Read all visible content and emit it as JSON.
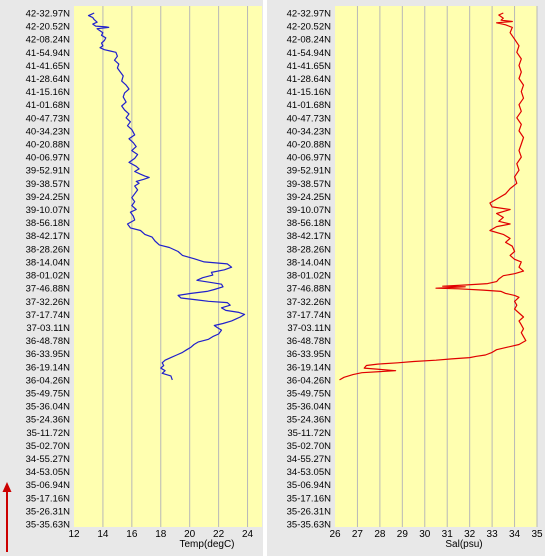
{
  "chart_data": [
    {
      "type": "line",
      "xlabel": "Temp(degC)",
      "ylabel": "",
      "xlim": [
        12,
        25
      ],
      "xticks": [
        12,
        14,
        16,
        18,
        20,
        22,
        24
      ],
      "grid": true,
      "colors": {
        "series": "#2020cc",
        "background": "#ffffb0",
        "grid": "#b8b8b8"
      },
      "series": [
        {
          "points": [
            [
              13.4,
              0
            ],
            [
              13.2,
              0.1
            ],
            [
              13.0,
              0.2
            ],
            [
              13.3,
              0.35
            ],
            [
              13.4,
              0.5
            ],
            [
              13.6,
              0.7
            ],
            [
              13.3,
              0.85
            ],
            [
              13.5,
              1.0
            ],
            [
              14.2,
              1.05
            ],
            [
              14.4,
              1.1
            ],
            [
              13.6,
              1.2
            ],
            [
              13.8,
              1.35
            ],
            [
              14.0,
              1.5
            ],
            [
              13.9,
              1.7
            ],
            [
              14.2,
              1.9
            ],
            [
              14.1,
              2.1
            ],
            [
              13.9,
              2.3
            ],
            [
              14.0,
              2.5
            ],
            [
              13.8,
              2.65
            ],
            [
              14.1,
              2.8
            ],
            [
              14.5,
              2.9
            ],
            [
              14.9,
              3.0
            ],
            [
              15.0,
              3.3
            ],
            [
              14.8,
              3.6
            ],
            [
              15.1,
              3.9
            ],
            [
              15.0,
              4.2
            ],
            [
              15.2,
              4.5
            ],
            [
              15.4,
              4.8
            ],
            [
              15.3,
              5.2
            ],
            [
              15.6,
              5.5
            ],
            [
              15.8,
              5.8
            ],
            [
              15.5,
              6.1
            ],
            [
              15.4,
              6.4
            ],
            [
              15.6,
              6.8
            ],
            [
              15.3,
              7.1
            ],
            [
              15.5,
              7.4
            ],
            [
              15.8,
              7.7
            ],
            [
              15.6,
              8.0
            ],
            [
              15.9,
              8.3
            ],
            [
              15.7,
              8.6
            ],
            [
              16.0,
              8.9
            ],
            [
              16.2,
              9.3
            ],
            [
              15.8,
              9.6
            ],
            [
              16.1,
              9.9
            ],
            [
              16.3,
              10.2
            ],
            [
              16.0,
              10.5
            ],
            [
              16.4,
              10.8
            ],
            [
              16.2,
              11.1
            ],
            [
              15.8,
              11.4
            ],
            [
              16.3,
              11.7
            ],
            [
              16.5,
              11.9
            ],
            [
              16.2,
              12.1
            ],
            [
              16.6,
              12.3
            ],
            [
              16.9,
              12.45
            ],
            [
              17.2,
              12.55
            ],
            [
              16.8,
              12.7
            ],
            [
              16.3,
              12.85
            ],
            [
              16.5,
              13.0
            ],
            [
              16.2,
              13.2
            ],
            [
              16.4,
              13.5
            ],
            [
              16.2,
              13.8
            ],
            [
              16.0,
              14.1
            ],
            [
              16.2,
              14.4
            ],
            [
              16.0,
              14.7
            ],
            [
              16.3,
              15.0
            ],
            [
              15.9,
              15.2
            ],
            [
              16.1,
              15.5
            ],
            [
              16.2,
              15.8
            ],
            [
              15.7,
              16.1
            ],
            [
              15.9,
              16.4
            ],
            [
              16.6,
              16.6
            ],
            [
              16.9,
              16.9
            ],
            [
              17.4,
              17.1
            ],
            [
              17.6,
              17.4
            ],
            [
              17.9,
              17.7
            ],
            [
              18.6,
              17.9
            ],
            [
              19.2,
              18.2
            ],
            [
              19.5,
              18.5
            ],
            [
              20.3,
              18.75
            ],
            [
              21.0,
              19.0
            ],
            [
              22.6,
              19.15
            ],
            [
              22.9,
              19.4
            ],
            [
              22.4,
              19.6
            ],
            [
              21.5,
              19.8
            ],
            [
              21.6,
              20.0
            ],
            [
              20.9,
              20.2
            ],
            [
              20.5,
              20.4
            ],
            [
              21.4,
              20.55
            ],
            [
              22.2,
              20.7
            ],
            [
              22.3,
              20.9
            ],
            [
              21.7,
              21.1
            ],
            [
              21.2,
              21.25
            ],
            [
              20.1,
              21.4
            ],
            [
              19.2,
              21.55
            ],
            [
              19.4,
              21.75
            ],
            [
              20.5,
              21.9
            ],
            [
              21.3,
              22.0
            ],
            [
              22.6,
              22.1
            ],
            [
              22.8,
              22.3
            ],
            [
              22.2,
              22.5
            ],
            [
              22.5,
              22.7
            ],
            [
              23.4,
              22.85
            ],
            [
              23.8,
              23.0
            ],
            [
              23.5,
              23.2
            ],
            [
              23.2,
              23.35
            ],
            [
              22.9,
              23.5
            ],
            [
              22.3,
              23.7
            ],
            [
              21.7,
              23.85
            ],
            [
              21.9,
              24.0
            ],
            [
              22.2,
              24.2
            ],
            [
              22.0,
              24.5
            ],
            [
              21.6,
              24.7
            ],
            [
              21.3,
              24.9
            ],
            [
              20.6,
              25.1
            ],
            [
              20.3,
              25.3
            ],
            [
              20.1,
              25.5
            ],
            [
              19.8,
              25.7
            ],
            [
              19.5,
              25.9
            ],
            [
              19.1,
              26.1
            ],
            [
              18.7,
              26.3
            ],
            [
              18.3,
              26.5
            ],
            [
              18.1,
              26.7
            ],
            [
              18.2,
              26.9
            ],
            [
              18.0,
              27.1
            ],
            [
              18.3,
              27.3
            ],
            [
              18.1,
              27.5
            ],
            [
              18.7,
              27.7
            ],
            [
              18.8,
              28.0
            ]
          ]
        }
      ]
    },
    {
      "type": "line",
      "xlabel": "Sal(psu)",
      "ylabel": "",
      "xlim": [
        26,
        35
      ],
      "xticks": [
        26,
        27,
        28,
        29,
        30,
        31,
        32,
        33,
        34,
        35
      ],
      "grid": true,
      "colors": {
        "series": "#e00000",
        "background": "#ffffb0",
        "grid": "#b8b8b8"
      },
      "series": [
        {
          "points": [
            [
              33.5,
              0
            ],
            [
              33.3,
              0.15
            ],
            [
              33.5,
              0.4
            ],
            [
              33.4,
              0.55
            ],
            [
              33.9,
              0.65
            ],
            [
              33.2,
              0.75
            ],
            [
              33.6,
              0.9
            ],
            [
              33.9,
              1.1
            ],
            [
              33.8,
              1.5
            ],
            [
              34.0,
              2.0
            ],
            [
              34.2,
              2.5
            ],
            [
              34.1,
              3.0
            ],
            [
              34.3,
              3.5
            ],
            [
              34.2,
              4.0
            ],
            [
              34.3,
              4.5
            ],
            [
              34.2,
              5.0
            ],
            [
              34.4,
              5.5
            ],
            [
              34.3,
              6.0
            ],
            [
              34.4,
              6.5
            ],
            [
              34.2,
              7.0
            ],
            [
              34.3,
              7.5
            ],
            [
              34.1,
              8.0
            ],
            [
              34.3,
              8.5
            ],
            [
              34.2,
              9.0
            ],
            [
              34.4,
              9.5
            ],
            [
              34.3,
              10.0
            ],
            [
              34.2,
              10.5
            ],
            [
              34.3,
              11.0
            ],
            [
              34.1,
              11.5
            ],
            [
              34.2,
              12.0
            ],
            [
              34.0,
              12.5
            ],
            [
              34.1,
              13.0
            ],
            [
              33.8,
              13.4
            ],
            [
              33.6,
              13.8
            ],
            [
              33.2,
              14.2
            ],
            [
              32.9,
              14.5
            ],
            [
              33.0,
              14.8
            ],
            [
              33.8,
              15.0
            ],
            [
              33.2,
              15.3
            ],
            [
              33.5,
              15.6
            ],
            [
              33.3,
              15.9
            ],
            [
              33.8,
              16.1
            ],
            [
              33.2,
              16.3
            ],
            [
              32.9,
              16.6
            ],
            [
              33.5,
              16.9
            ],
            [
              33.8,
              17.2
            ],
            [
              33.6,
              17.5
            ],
            [
              33.9,
              17.8
            ],
            [
              34.0,
              18.2
            ],
            [
              33.8,
              18.5
            ],
            [
              34.0,
              18.8
            ],
            [
              34.3,
              19.0
            ],
            [
              34.2,
              19.4
            ],
            [
              34.4,
              19.7
            ],
            [
              34.0,
              19.9
            ],
            [
              33.5,
              20.05
            ],
            [
              33.3,
              20.3
            ],
            [
              33.2,
              20.5
            ],
            [
              32.8,
              20.65
            ],
            [
              31.9,
              20.75
            ],
            [
              30.8,
              20.85
            ],
            [
              31.8,
              20.9
            ],
            [
              30.5,
              21.0
            ],
            [
              31.5,
              21.05
            ],
            [
              32.6,
              21.15
            ],
            [
              33.4,
              21.25
            ],
            [
              33.6,
              21.4
            ],
            [
              34.0,
              21.55
            ],
            [
              34.2,
              21.7
            ],
            [
              34.0,
              22.0
            ],
            [
              34.1,
              22.3
            ],
            [
              34.0,
              22.6
            ],
            [
              34.2,
              22.9
            ],
            [
              34.4,
              23.2
            ],
            [
              34.2,
              23.5
            ],
            [
              34.3,
              23.8
            ],
            [
              34.4,
              24.1
            ],
            [
              34.3,
              24.4
            ],
            [
              34.4,
              24.7
            ],
            [
              34.5,
              25.0
            ],
            [
              34.2,
              25.3
            ],
            [
              33.7,
              25.5
            ],
            [
              33.2,
              25.7
            ],
            [
              33.0,
              25.9
            ],
            [
              32.7,
              26.1
            ],
            [
              32.3,
              26.2
            ],
            [
              32.0,
              26.3
            ],
            [
              31.2,
              26.4
            ],
            [
              30.5,
              26.5
            ],
            [
              29.5,
              26.6
            ],
            [
              28.8,
              26.7
            ],
            [
              27.9,
              26.8
            ],
            [
              27.4,
              26.9
            ],
            [
              27.3,
              27.1
            ],
            [
              28.0,
              27.2
            ],
            [
              28.7,
              27.3
            ],
            [
              27.2,
              27.45
            ],
            [
              26.8,
              27.6
            ],
            [
              26.4,
              27.8
            ],
            [
              26.2,
              28.0
            ]
          ]
        }
      ]
    }
  ],
  "lat_labels": [
    "42-32.97N",
    "42-20.52N",
    "42-08.24N",
    "41-54.94N",
    "41-41.65N",
    "41-28.64N",
    "41-15.16N",
    "41-01.68N",
    "40-47.73N",
    "40-34.23N",
    "40-20.88N",
    "40-06.97N",
    "39-52.91N",
    "39-38.57N",
    "39-24.25N",
    "39-10.07N",
    "38-56.18N",
    "38-42.17N",
    "38-28.26N",
    "38-14.04N",
    "38-01.02N",
    "37-46.88N",
    "37-32.26N",
    "37-17.74N",
    "37-03.11N",
    "36-48.78N",
    "36-33.95N",
    "36-19.14N",
    "36-04.26N",
    "35-49.75N",
    "35-36.04N",
    "35-24.36N",
    "35-11.72N",
    "35-02.70N",
    "34-55.27N",
    "34-53.05N",
    "35-06.94N",
    "35-17.16N",
    "35-26.31N",
    "35-35.63N"
  ],
  "colors": {
    "arrow": "#cc0000",
    "frame": "#e8e8e8"
  },
  "icons": {
    "direction-arrow": "up-arrow"
  }
}
